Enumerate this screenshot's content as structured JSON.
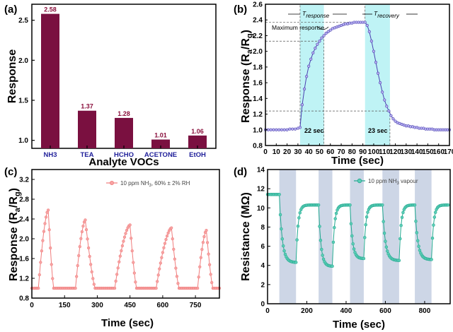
{
  "chart_data": [
    {
      "panel": "(a)",
      "type": "bar",
      "xlabel": "Analyte VOCs",
      "ylabel": "Response",
      "categories": [
        "NH3",
        "TEA",
        "HCHO",
        "ACETONE",
        "EtOH"
      ],
      "values": [
        2.58,
        1.37,
        1.28,
        1.01,
        1.06
      ],
      "value_labels": [
        "2.58",
        "1.37",
        "1.28",
        "1.01",
        "1.06"
      ],
      "ylim": [
        0.9,
        2.7
      ],
      "yticks": [
        1.0,
        1.5,
        2.0,
        2.5
      ],
      "ytick_labels": [
        "1.0",
        "1.5",
        "2.0",
        "2.5"
      ],
      "bar_color": "#7a1040",
      "label_color": "#8a0f3c",
      "tick_color": "#1f1f9a"
    },
    {
      "panel": "(b)",
      "type": "line",
      "xlabel": "Time (sec)",
      "ylabel_main": "Response (R",
      "ylabel_sub_a": "a",
      "ylabel_mid": "/R",
      "ylabel_sub_g": "g",
      "ylabel_end": ")",
      "xlim": [
        0,
        170
      ],
      "ylim": [
        0.8,
        2.6
      ],
      "xticks": [
        0,
        10,
        20,
        30,
        40,
        50,
        60,
        70,
        80,
        90,
        100,
        110,
        120,
        130,
        140,
        150,
        160,
        170
      ],
      "yticks": [
        0.8,
        1.0,
        1.2,
        1.4,
        1.6,
        1.8,
        2.0,
        2.2,
        2.4,
        2.6
      ],
      "ytick_labels": [
        "0.8",
        "1.0",
        "1.2",
        "1.4",
        "1.6",
        "1.8",
        "2.0",
        "2.2",
        "2.4",
        "2.6"
      ],
      "series_color": "#4a3fb0",
      "marker_fill": "#b9b2f0",
      "shade_color": "#bff3f5",
      "shaded_regions": [
        [
          32,
          54
        ],
        [
          92,
          115
        ]
      ],
      "t_response_label": "T",
      "t_response_sub": "response",
      "t_recovery_label": "T",
      "t_recovery_sub": "recovery",
      "max_response_label": "Maximum response",
      "response_time_label": "22 sec",
      "recovery_time_label": "23 sec",
      "points": [
        [
          0,
          1.0
        ],
        [
          2.5,
          1.0
        ],
        [
          5,
          1.0
        ],
        [
          7.5,
          1.0
        ],
        [
          10,
          1.0
        ],
        [
          12.5,
          1.0
        ],
        [
          15,
          1.0
        ],
        [
          17.5,
          1.0
        ],
        [
          20,
          1.0
        ],
        [
          22.5,
          1.01
        ],
        [
          25,
          1.01
        ],
        [
          27.5,
          1.01
        ],
        [
          30,
          1.02
        ],
        [
          32,
          1.03
        ],
        [
          34,
          1.32
        ],
        [
          36,
          1.52
        ],
        [
          38,
          1.68
        ],
        [
          40,
          1.81
        ],
        [
          42,
          1.9
        ],
        [
          44,
          1.98
        ],
        [
          46,
          2.04
        ],
        [
          48,
          2.09
        ],
        [
          50,
          2.13
        ],
        [
          52,
          2.17
        ],
        [
          54,
          2.2
        ],
        [
          56,
          2.23
        ],
        [
          58,
          2.25
        ],
        [
          60,
          2.27
        ],
        [
          62,
          2.29
        ],
        [
          64,
          2.3
        ],
        [
          66,
          2.31
        ],
        [
          68,
          2.32
        ],
        [
          70,
          2.33
        ],
        [
          72,
          2.34
        ],
        [
          74,
          2.35
        ],
        [
          76,
          2.35
        ],
        [
          78,
          2.36
        ],
        [
          80,
          2.36
        ],
        [
          82,
          2.37
        ],
        [
          84,
          2.37
        ],
        [
          86,
          2.37
        ],
        [
          88,
          2.37
        ],
        [
          90,
          2.37
        ],
        [
          92,
          2.37
        ],
        [
          94,
          2.33
        ],
        [
          96,
          2.25
        ],
        [
          98,
          2.13
        ],
        [
          100,
          2.0
        ],
        [
          102,
          1.86
        ],
        [
          104,
          1.72
        ],
        [
          106,
          1.6
        ],
        [
          108,
          1.48
        ],
        [
          110,
          1.38
        ],
        [
          112,
          1.3
        ],
        [
          114,
          1.24
        ],
        [
          116,
          1.18
        ],
        [
          118,
          1.14
        ],
        [
          120,
          1.11
        ],
        [
          122,
          1.09
        ],
        [
          124,
          1.08
        ],
        [
          126,
          1.07
        ],
        [
          128,
          1.06
        ],
        [
          130,
          1.05
        ],
        [
          132,
          1.05
        ],
        [
          134,
          1.04
        ],
        [
          136,
          1.04
        ],
        [
          138,
          1.03
        ],
        [
          140,
          1.03
        ],
        [
          142,
          1.02
        ],
        [
          144,
          1.02
        ],
        [
          146,
          1.02
        ],
        [
          148,
          1.01
        ],
        [
          150,
          1.01
        ],
        [
          152,
          1.01
        ],
        [
          154,
          1.01
        ],
        [
          156,
          1.0
        ],
        [
          158,
          1.0
        ],
        [
          160,
          1.0
        ],
        [
          162,
          1.0
        ],
        [
          164,
          1.0
        ],
        [
          166,
          1.0
        ],
        [
          168,
          1.0
        ],
        [
          170,
          1.0
        ]
      ]
    },
    {
      "panel": "(c)",
      "type": "line",
      "xlabel": "Time (sec)",
      "ylabel_main": "Response (R",
      "ylabel_sub_a": "a",
      "ylabel_mid": "/R",
      "ylabel_sub_g": "g",
      "ylabel_end": ")",
      "xlim": [
        0,
        860
      ],
      "ylim": [
        0.8,
        3.4
      ],
      "xticks": [
        0,
        150,
        300,
        450,
        600,
        750
      ],
      "xtick_labels": [
        "0",
        "150",
        "300",
        "450",
        "600",
        "750"
      ],
      "yticks": [
        0.8,
        1.2,
        1.6,
        2.0,
        2.4,
        2.8,
        3.2
      ],
      "ytick_labels": [
        "0.8",
        "1.2",
        "1.6",
        "2.0",
        "2.4",
        "2.8",
        "3.2"
      ],
      "series_color": "#f07c7c",
      "marker_fill": "#f7a3a3",
      "legend_prefix": "10 ppm NH",
      "legend_sub": "3",
      "legend_suffix": ", 60% ± 2% RH",
      "cycles": [
        {
          "start": 30,
          "peak_t": 75,
          "end": 100,
          "peak": 2.58
        },
        {
          "start": 200,
          "peak_t": 245,
          "end": 290,
          "peak": 2.38
        },
        {
          "start": 380,
          "peak_t": 450,
          "end": 480,
          "peak": 2.28
        },
        {
          "start": 570,
          "peak_t": 640,
          "end": 675,
          "peak": 2.22
        },
        {
          "start": 760,
          "peak_t": 800,
          "end": 830,
          "peak": 2.17
        }
      ],
      "baseline": 1.0
    },
    {
      "panel": "(d)",
      "type": "line",
      "xlabel": "Time (sec)",
      "ylabel": "Resistance (MΩ)",
      "xlim": [
        0,
        930
      ],
      "ylim": [
        0,
        14
      ],
      "xticks": [
        0,
        200,
        400,
        600,
        800
      ],
      "xtick_labels": [
        "0",
        "200",
        "400",
        "600",
        "800"
      ],
      "yticks": [
        0,
        2,
        4,
        6,
        8,
        10,
        12,
        14
      ],
      "ytick_labels": [
        "0",
        "2",
        "4",
        "6",
        "8",
        "10",
        "12",
        "14"
      ],
      "series_color": "#1fa78e",
      "marker_fill": "#5ccdb6",
      "shade_color": "#cdd6e6",
      "shaded_regions": [
        [
          60,
          145
        ],
        [
          260,
          330
        ],
        [
          420,
          490
        ],
        [
          585,
          670
        ],
        [
          750,
          835
        ]
      ],
      "legend_prefix": "10 ppm NH",
      "legend_sub": "3",
      "legend_suffix": " vapour",
      "cycles": [
        {
          "on": 60,
          "off": 145,
          "high": 11.4,
          "low": 4.3
        },
        {
          "on": 260,
          "off": 330,
          "high": 10.3,
          "low": 3.9
        },
        {
          "on": 420,
          "off": 490,
          "high": 10.3,
          "low": 4.7
        },
        {
          "on": 585,
          "off": 670,
          "high": 10.3,
          "low": 4.5
        },
        {
          "on": 750,
          "off": 835,
          "high": 10.3,
          "low": 4.6
        }
      ],
      "final_level": 10.3
    }
  ]
}
